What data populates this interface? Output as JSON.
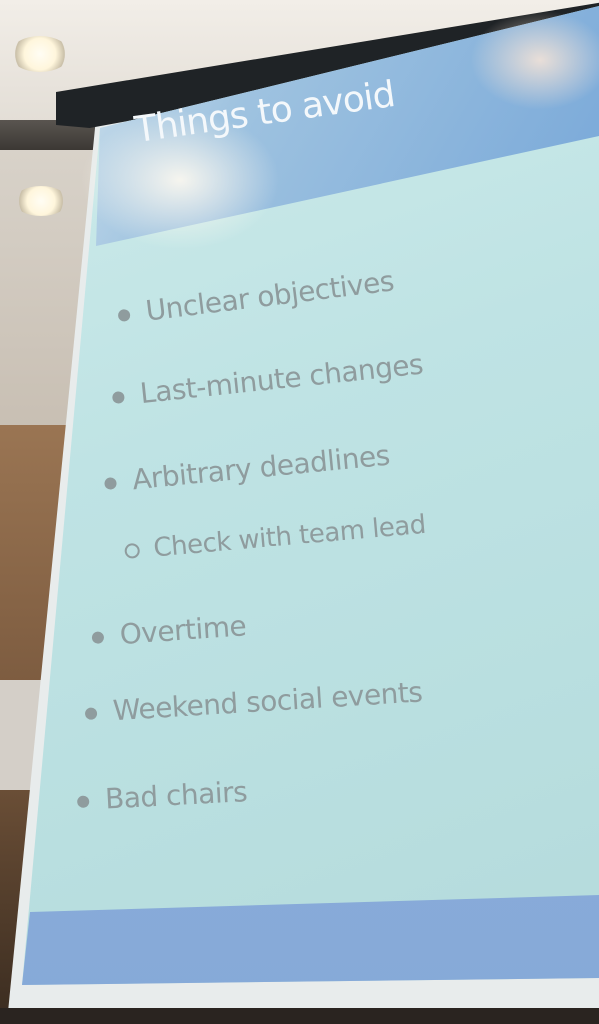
{
  "slide": {
    "title": "Things to avoid",
    "items": [
      {
        "text": "Unclear objectives",
        "level": 1
      },
      {
        "text": "Last-minute changes",
        "level": 1
      },
      {
        "text": "Arbitrary deadlines",
        "level": 1
      },
      {
        "text": "Check with team lead",
        "level": 2
      },
      {
        "text": "Overtime",
        "level": 1
      },
      {
        "text": "Weekend social events",
        "level": 1
      },
      {
        "text": "Bad chairs",
        "level": 1
      }
    ]
  },
  "colors": {
    "header": "#7aa9d9",
    "body": "#bfe3e4",
    "text": "#8f9c9e",
    "title_text": "#f4f8fb"
  }
}
